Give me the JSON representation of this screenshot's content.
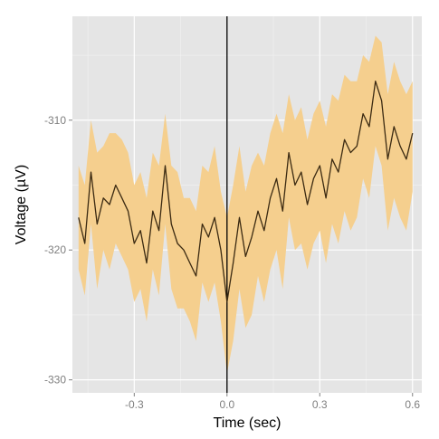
{
  "chart_data": {
    "type": "line",
    "xlabel": "Time (sec)",
    "ylabel": "Voltage (µV)",
    "xlim": [
      -0.5,
      0.63
    ],
    "ylim": [
      -331,
      -302
    ],
    "x_ticks": [
      -0.3,
      0.0,
      0.3,
      0.6
    ],
    "x_tick_labels": [
      "-0.3",
      "0.0",
      "0.3",
      "0.6"
    ],
    "y_ticks": [
      -310,
      -320,
      -330
    ],
    "y_tick_labels": [
      "-310",
      "-320",
      "-330"
    ],
    "grid": true,
    "vline_x": 0.0,
    "x": [
      -0.48,
      -0.46,
      -0.44,
      -0.42,
      -0.4,
      -0.38,
      -0.36,
      -0.34,
      -0.32,
      -0.3,
      -0.28,
      -0.26,
      -0.24,
      -0.22,
      -0.2,
      -0.18,
      -0.16,
      -0.14,
      -0.12,
      -0.1,
      -0.08,
      -0.06,
      -0.04,
      -0.02,
      0.0,
      0.02,
      0.04,
      0.06,
      0.08,
      0.1,
      0.12,
      0.14,
      0.16,
      0.18,
      0.2,
      0.22,
      0.24,
      0.26,
      0.28,
      0.3,
      0.32,
      0.34,
      0.36,
      0.38,
      0.4,
      0.42,
      0.44,
      0.46,
      0.48,
      0.5,
      0.52,
      0.54,
      0.56,
      0.58,
      0.6
    ],
    "mean": [
      -317.5,
      -319.5,
      -314.0,
      -318.0,
      -316.0,
      -316.5,
      -315.0,
      -316.0,
      -317.0,
      -319.5,
      -318.5,
      -321.0,
      -317.0,
      -318.5,
      -313.5,
      -318.0,
      -319.5,
      -320.0,
      -321.0,
      -322.0,
      -318.0,
      -319.0,
      -317.5,
      -320.0,
      -324.0,
      -321.0,
      -317.5,
      -320.5,
      -319.0,
      -317.0,
      -318.5,
      -316.0,
      -314.5,
      -317.0,
      -312.5,
      -315.0,
      -314.0,
      -316.5,
      -314.5,
      -313.5,
      -316.0,
      -313.0,
      -314.0,
      -311.5,
      -312.5,
      -312.0,
      -309.5,
      -310.5,
      -307.0,
      -308.5,
      -313.0,
      -310.5,
      -312.0,
      -313.0,
      -311.0
    ],
    "upper": [
      -313.5,
      -315.0,
      -310.0,
      -312.5,
      -312.0,
      -311.0,
      -311.0,
      -311.5,
      -312.5,
      -315.0,
      -314.0,
      -316.0,
      -312.5,
      -313.5,
      -309.5,
      -313.5,
      -314.0,
      -316.0,
      -316.0,
      -317.0,
      -313.5,
      -314.0,
      -312.0,
      -315.5,
      -317.5,
      -315.0,
      -312.0,
      -315.5,
      -313.5,
      -312.5,
      -313.5,
      -311.0,
      -309.5,
      -311.0,
      -308.0,
      -310.0,
      -309.0,
      -311.5,
      -309.5,
      -308.5,
      -310.5,
      -308.0,
      -308.5,
      -306.5,
      -307.0,
      -307.0,
      -305.0,
      -305.5,
      -303.5,
      -304.0,
      -308.0,
      -305.5,
      -307.0,
      -308.0,
      -307.0
    ],
    "lower": [
      -321.5,
      -323.5,
      -318.0,
      -323.0,
      -320.0,
      -321.5,
      -319.5,
      -320.5,
      -321.5,
      -324.0,
      -323.0,
      -325.5,
      -321.5,
      -323.5,
      -318.0,
      -323.0,
      -324.5,
      -324.5,
      -325.5,
      -327.0,
      -322.5,
      -324.0,
      -322.5,
      -325.5,
      -329.5,
      -327.0,
      -323.0,
      -326.0,
      -325.0,
      -322.0,
      -324.0,
      -321.5,
      -320.0,
      -323.0,
      -317.5,
      -320.0,
      -319.5,
      -321.5,
      -319.5,
      -318.5,
      -321.0,
      -318.0,
      -319.5,
      -317.0,
      -318.5,
      -317.5,
      -314.5,
      -316.0,
      -312.0,
      -313.5,
      -318.5,
      -316.0,
      -317.5,
      -318.5,
      -315.5
    ],
    "colors": {
      "panel": "#e5e5e5",
      "grid_major": "#ffffff",
      "grid_minor": "#f2f2f2",
      "ribbon": "#f5cf8e",
      "line": "#3b2a12",
      "vline": "#000000",
      "tick_text": "#7f7f7f",
      "axis_text": "#000000"
    }
  }
}
